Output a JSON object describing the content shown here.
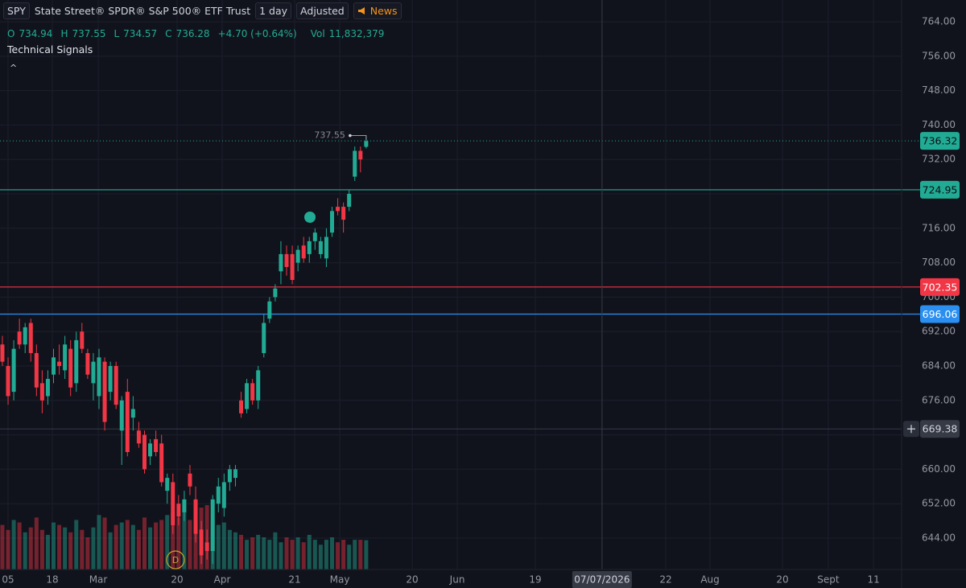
{
  "chart_data": {
    "type": "candlestick",
    "symbol": "SPY",
    "title": "State Street® SPDR® S&P 500® ETF Trust",
    "interval": "1 day",
    "adjustment": "Adjusted",
    "news": "News",
    "legend": {
      "open_label": "O",
      "open": 734.94,
      "high_label": "H",
      "high": 737.55,
      "low_label": "L",
      "low": 734.57,
      "close_label": "C",
      "close": 736.28,
      "change": "+4.70 (+0.64%)",
      "volume_label": "Vol",
      "volume": "11,832,379"
    },
    "indicator": "Technical Signals",
    "collapse": "^",
    "up_color": "#22ab94",
    "down_color": "#f23645",
    "grid": true,
    "categories": [
      null,
      null,
      null,
      null,
      null,
      null,
      null,
      null,
      null,
      null,
      null,
      null,
      null,
      null,
      null,
      null,
      null,
      null,
      null,
      null,
      null,
      null,
      null,
      null,
      null,
      null,
      null,
      null,
      null,
      null,
      null,
      null,
      null,
      null,
      null,
      null,
      null,
      null,
      null,
      null,
      null,
      null,
      null,
      null,
      null,
      null,
      null,
      null,
      null,
      null,
      null,
      null,
      null,
      null,
      null,
      null,
      null,
      null,
      null,
      null,
      null,
      null,
      null,
      null,
      null
    ],
    "open": [
      689,
      684,
      678,
      692,
      689,
      694,
      687,
      680,
      677,
      682,
      685,
      683,
      688,
      680,
      692,
      687,
      680,
      677,
      685,
      678,
      684,
      669,
      678,
      672,
      669,
      668,
      663,
      667,
      666,
      655,
      657,
      652,
      650,
      659,
      653,
      646,
      643,
      641,
      652,
      651,
      657,
      658,
      676,
      674,
      680,
      676,
      687,
      695,
      700,
      706,
      710,
      710,
      708,
      712,
      710,
      713,
      710,
      709,
      715,
      721,
      721,
      721,
      728,
      734,
      734.94
    ],
    "high": [
      691,
      686,
      690,
      695,
      694,
      695,
      689,
      683,
      683,
      688,
      689,
      691,
      690,
      692,
      694,
      688,
      687,
      688,
      686,
      685,
      685,
      677,
      681,
      677,
      671,
      669,
      667,
      669,
      668,
      659,
      659,
      654,
      655,
      661,
      656,
      648,
      646,
      654,
      658,
      659,
      661,
      661,
      678,
      681,
      681,
      684,
      696,
      700,
      703,
      713,
      712,
      712,
      712,
      714,
      714,
      716,
      714,
      716,
      721,
      723,
      722,
      725,
      735,
      735,
      737.55
    ],
    "low": [
      684,
      675,
      676,
      688,
      687,
      685,
      677,
      673,
      675,
      680,
      682,
      681,
      677,
      678,
      687,
      681,
      676,
      674,
      669,
      676,
      674,
      661,
      663,
      669,
      665,
      659,
      661,
      663,
      656,
      652,
      645,
      647,
      648,
      654,
      643,
      638,
      639,
      638,
      650,
      649,
      655,
      656,
      672,
      673,
      675,
      674,
      686,
      694,
      699,
      703,
      705,
      703,
      706,
      708,
      708,
      711,
      709,
      707,
      714,
      719,
      715,
      720,
      727,
      729,
      734.57
    ],
    "close": [
      685,
      677,
      688,
      689,
      693,
      687,
      679,
      676,
      681,
      686,
      684,
      689,
      679,
      690,
      688,
      682,
      685,
      686,
      671,
      684,
      675,
      676,
      664,
      674,
      666,
      660,
      666,
      664,
      657,
      658,
      647,
      649,
      653,
      656,
      645,
      640,
      641,
      653,
      656,
      657,
      660,
      660,
      673,
      680,
      676,
      683,
      694,
      699,
      702,
      710,
      707,
      704,
      711,
      709,
      713,
      715,
      713,
      714,
      720,
      720,
      718,
      724,
      734,
      732,
      736.28
    ],
    "volume": [
      18000000,
      16000000,
      20000000,
      19000000,
      15000000,
      17000000,
      21000000,
      16000000,
      14000000,
      19000000,
      18000000,
      17000000,
      15000000,
      20000000,
      16000000,
      13000000,
      17000000,
      22000000,
      21000000,
      15000000,
      18000000,
      19000000,
      20000000,
      18000000,
      16000000,
      21000000,
      17000000,
      19000000,
      20000000,
      22000000,
      23000000,
      21000000,
      24000000,
      20000000,
      19000000,
      25000000,
      26000000,
      20000000,
      18000000,
      19000000,
      16000000,
      15000000,
      14000000,
      12000000,
      13000000,
      14000000,
      13000000,
      12000000,
      15000000,
      11000000,
      13000000,
      12000000,
      13000000,
      11000000,
      14000000,
      12000000,
      10000000,
      12000000,
      13000000,
      11000000,
      12000000,
      10000000,
      12000000,
      12000000,
      11832379
    ],
    "xlim": [
      -0.42,
      158.2
    ],
    "xticks": [
      {
        "value": 0.99,
        "label": "05"
      },
      {
        "value": 8.78,
        "label": "18"
      },
      {
        "value": 16.86,
        "label": "Mar"
      },
      {
        "value": 30.74,
        "label": "20"
      },
      {
        "value": 38.67,
        "label": "Apr"
      },
      {
        "value": 51.42,
        "label": "21"
      },
      {
        "value": 59.35,
        "label": "May"
      },
      {
        "value": 72.1,
        "label": "20"
      },
      {
        "value": 80.03,
        "label": "Jun"
      },
      {
        "value": 93.77,
        "label": "19"
      },
      {
        "value": 116.7,
        "label": "22"
      },
      {
        "value": 124.5,
        "label": "Aug"
      },
      {
        "value": 137.25,
        "label": "20"
      },
      {
        "value": 145.3,
        "label": "Sept"
      },
      {
        "value": 153.26,
        "label": "11"
      }
    ],
    "ylim": [
      636.71,
      769.05
    ],
    "yticks": [
      {
        "value": 644,
        "label": "644.00"
      },
      {
        "value": 652,
        "label": "652.00"
      },
      {
        "value": 660,
        "label": "660.00"
      },
      {
        "value": 668,
        "label": "668.00"
      },
      {
        "value": 676,
        "label": "676.00"
      },
      {
        "value": 684,
        "label": "684.00"
      },
      {
        "value": 692,
        "label": "692.00"
      },
      {
        "value": 700,
        "label": "700.00"
      },
      {
        "value": 708,
        "label": "708.00"
      },
      {
        "value": 716,
        "label": "716.00"
      },
      {
        "value": 724,
        "label": "724.00"
      },
      {
        "value": 732,
        "label": "732.00"
      },
      {
        "value": 740,
        "label": "740.00"
      },
      {
        "value": 748,
        "label": "748.00"
      },
      {
        "value": 756,
        "label": "756.00"
      },
      {
        "value": 764,
        "label": "764.00"
      }
    ],
    "price_lines": [
      {
        "value": 724.95,
        "color": "#22ab94"
      },
      {
        "value": 702.35,
        "color": "#f23645"
      },
      {
        "value": 696.06,
        "color": "#2a8ff0"
      }
    ],
    "last_price": {
      "value": 736.32,
      "color": "#22ab94"
    },
    "high_marker": 737.55,
    "crosshair": {
      "x": {
        "value": 105.5,
        "label": "07/07/2026"
      },
      "y": 669.38
    }
  }
}
